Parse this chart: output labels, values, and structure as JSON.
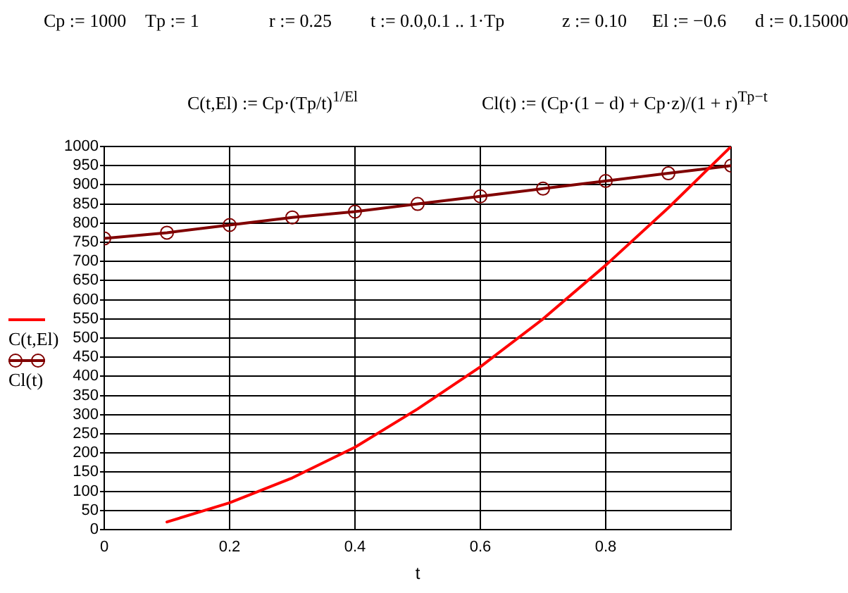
{
  "chart_data": {
    "type": "line",
    "annotations": [
      "Cp := 1000",
      "Tp := 1",
      "r := 0.25",
      "t := 0.0,0.1 .. 1·Tp",
      "z := 0.10",
      "El := −0.6",
      "d := 0.15000",
      "C(t,El) := Cp·(Tp/t)$^{1/El}$",
      "Cl(t) := (Cp·(1 − d) + Cp·z)/(1 + r)$^{Tp−t}$"
    ],
    "xlabel": "t",
    "x": [
      0,
      0.1,
      0.2,
      0.3,
      0.4,
      0.5,
      0.6,
      0.7,
      0.8,
      0.9,
      1
    ],
    "series": [
      {
        "name": "C(t,El)",
        "color": "#ff0000",
        "marker": "none",
        "values": [
          null,
          20,
          70,
          135,
          215,
          315,
          425,
          550,
          690,
          840,
          1000
        ]
      },
      {
        "name": "Cl(t)",
        "color": "#800000",
        "marker": "circle",
        "values": [
          760,
          775,
          795,
          815,
          830,
          850,
          870,
          890,
          910,
          930,
          950
        ]
      }
    ],
    "xlim": [
      0,
      1
    ],
    "xticks": [
      0,
      0.2,
      0.4,
      0.6,
      0.8,
      {
        "value": 1,
        "label": null
      }
    ],
    "ylim": [
      0,
      1000
    ],
    "yticks": [
      0,
      50,
      100,
      150,
      200,
      250,
      300,
      350,
      400,
      450,
      500,
      550,
      600,
      650,
      700,
      750,
      800,
      850,
      900,
      950,
      1000
    ],
    "grid": true,
    "legend": "left",
    "line_style": "solid"
  }
}
